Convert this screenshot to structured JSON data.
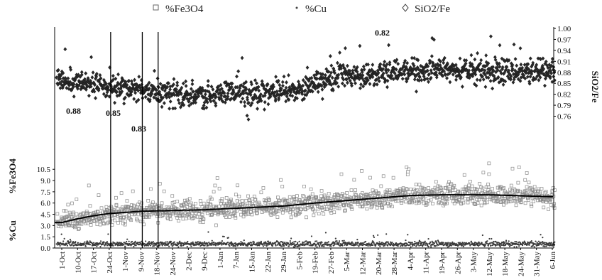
{
  "chart_data": {
    "type": "scatter",
    "legend": {
      "placement": "top",
      "entries": [
        "%Fe3O4",
        "%Cu",
        "SiO2/Fe"
      ]
    },
    "x": {
      "tick_labels": [
        "1-Oct",
        "10-Oct",
        "17-Oct",
        "24-Oct",
        "1-Nov",
        "9-Nov",
        "18-Nov",
        "24-Nov",
        "2-Dec",
        "9-Dec",
        "1-Jan",
        "7-Jan",
        "15-Jan",
        "22-Jan",
        "29-Jan",
        "5-Feb",
        "19-Feb",
        "27-Feb",
        "5-Mar",
        "12-Mar",
        "20-Mar",
        "28-Mar",
        "4-Apr",
        "11-Apr",
        "19-Apr",
        "26-Apr",
        "3-May",
        "12-May",
        "18-May",
        "24-May",
        "31-May",
        "6-Jun"
      ]
    },
    "y_left": {
      "labels": [
        "%Fe3O4",
        "%Cu"
      ],
      "ticks": [
        0.0,
        1.5,
        3.0,
        4.5,
        6.0,
        7.5,
        9.0,
        10.5
      ],
      "tick_labels": [
        "0.0",
        "1.5",
        "3.0",
        "4.5",
        "6.0",
        "7.5",
        "9.0",
        "10.5"
      ]
    },
    "y_right": {
      "label": "SiO2/Fe",
      "ticks": [
        0.76,
        0.79,
        0.82,
        0.85,
        0.88,
        0.91,
        0.94,
        0.97,
        1.0
      ],
      "tick_labels": [
        "0.76",
        "0.79",
        "0.82",
        "0.85",
        "0.88",
        "0.91",
        "0.94",
        "0.97",
        "1.00"
      ]
    },
    "vertical_lines_at": [
      "24-Oct",
      "9-Nov",
      "18-Nov"
    ],
    "annotations": [
      {
        "text": "0.88",
        "x": "10-Oct"
      },
      {
        "text": "0.85",
        "x": "1-Nov"
      },
      {
        "text": "0.83",
        "x": "9-Nov"
      },
      {
        "text": "0.82",
        "x": "28-Mar"
      }
    ],
    "series": [
      {
        "name": "%Fe3O4",
        "axis": "left",
        "marker": "square",
        "trend_x": [
          "1-Oct",
          "10-Oct",
          "17-Oct",
          "24-Oct",
          "9-Nov",
          "24-Nov",
          "9-Dec",
          "7-Jan",
          "29-Jan",
          "19-Feb",
          "12-Mar",
          "4-Apr",
          "19-Apr",
          "12-May",
          "31-May",
          "6-Jun"
        ],
        "trend_y": [
          3.4,
          3.9,
          4.3,
          4.6,
          4.9,
          5.0,
          5.1,
          5.3,
          5.6,
          6.0,
          6.5,
          7.0,
          7.1,
          7.1,
          6.9,
          6.85
        ]
      },
      {
        "name": "%Cu",
        "axis": "left",
        "marker": "dot",
        "y_range": [
          0.2,
          1.2
        ]
      },
      {
        "name": "SiO2/Fe",
        "axis": "right",
        "marker": "diamond",
        "y_range": [
          0.76,
          1.0
        ]
      }
    ]
  }
}
